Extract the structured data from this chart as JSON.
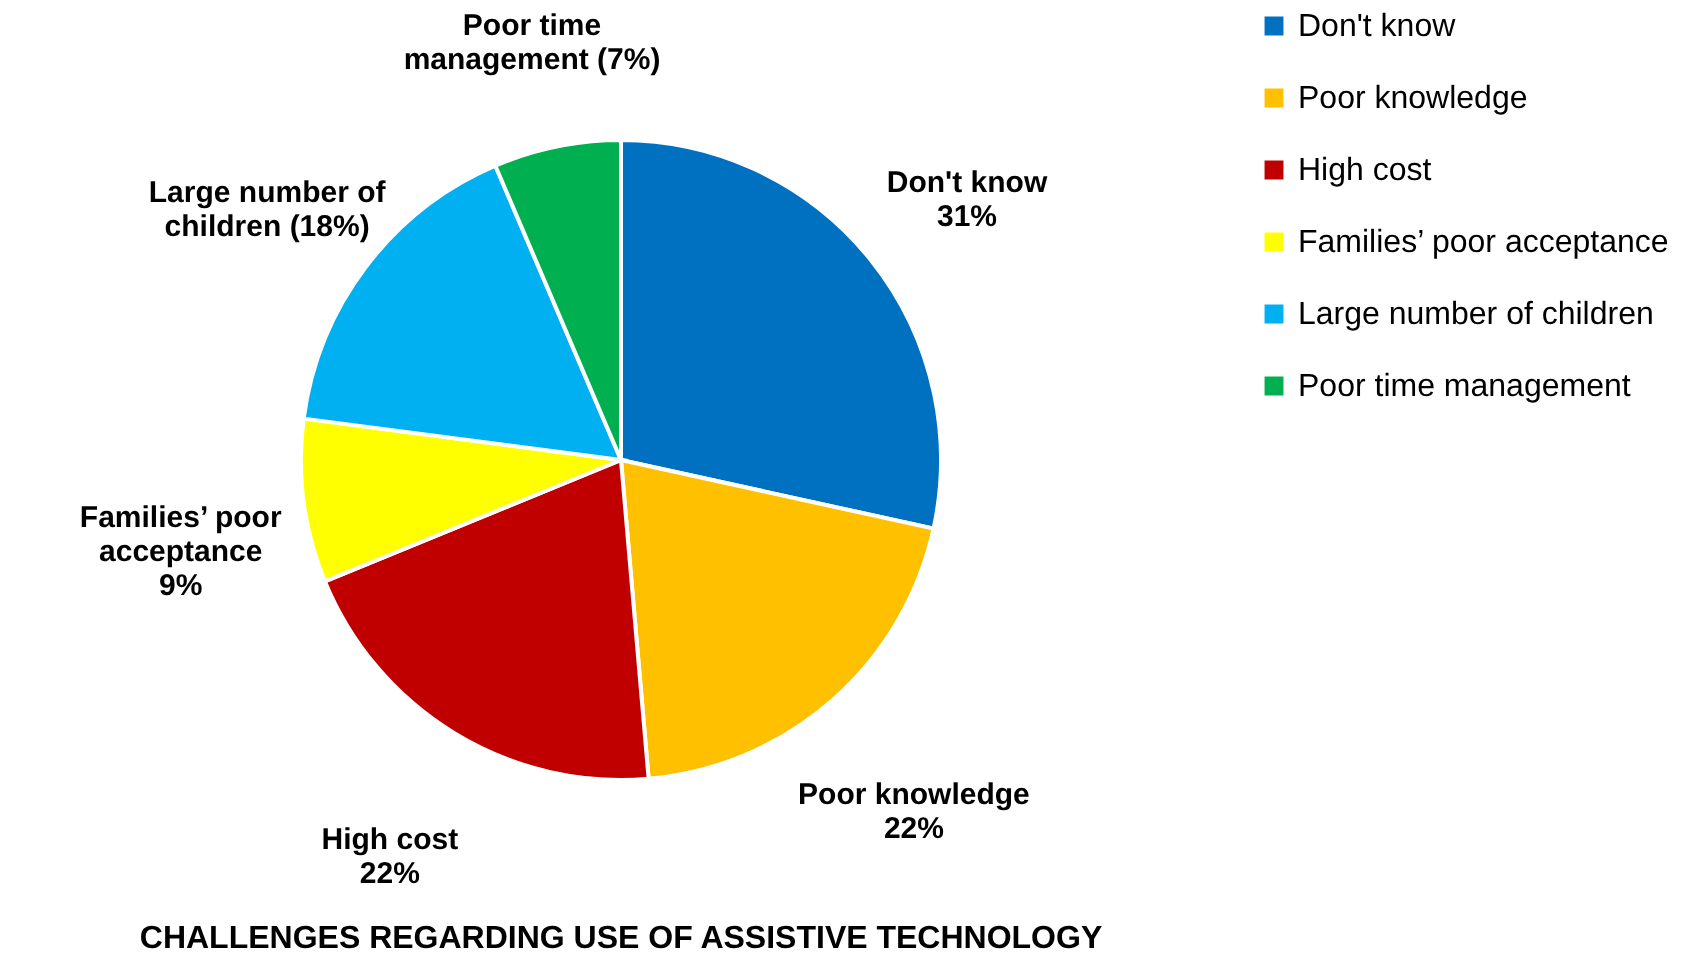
{
  "chart_data": {
    "type": "pie",
    "title": "CHALLENGES REGARDING USE OF ASSISTIVE TECHNOLOGY",
    "categories": [
      "Don't know",
      "Poor knowledge",
      "High cost",
      "Families’ poor acceptance",
      "Large number of children",
      "Poor time management"
    ],
    "values": [
      31,
      22,
      22,
      9,
      18,
      7
    ],
    "colors": [
      "#0070c0",
      "#ffc000",
      "#c00000",
      "#ffff00",
      "#00b0f0",
      "#00b050"
    ],
    "value_labels": [
      "Don't know\n31%",
      "Poor knowledge\n22%",
      "High cost\n22%",
      "Families’ poor\nacceptance\n9%",
      "Large number of\nchildren (18%)",
      "Poor time\nmanagement (7%)"
    ],
    "legend": "right"
  }
}
